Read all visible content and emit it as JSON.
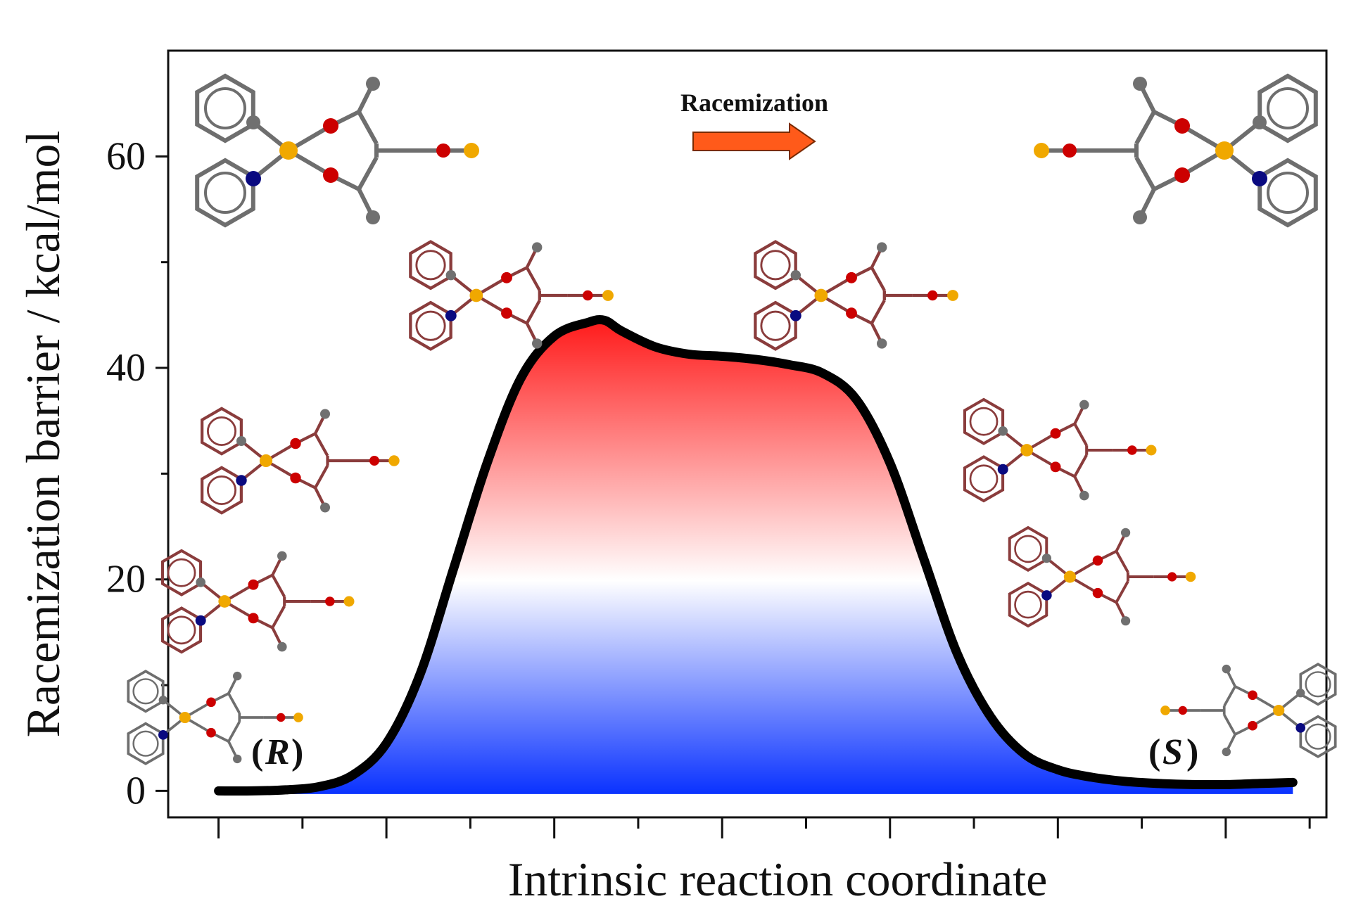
{
  "chart_data": {
    "type": "area",
    "title": "",
    "xlabel": "Intrinsic reaction coordinate",
    "ylabel": "Racemization barrier / kcal/mol",
    "ylim": [
      -2.5,
      70
    ],
    "xlim": [
      -1.5,
      33
    ],
    "y_ticks": [
      0,
      20,
      40,
      60
    ],
    "y_tick_labels": [
      "0",
      "20",
      "40",
      "60"
    ],
    "x_tick_labels_shown": false,
    "grid": false,
    "legend": "none",
    "fill_gradient": {
      "top": "#ff1a1a",
      "middle": "#ffffff",
      "bottom": "#0a32ff"
    },
    "line_color": "#000000",
    "series": [
      {
        "x": [
          0,
          1,
          2,
          3,
          4,
          5,
          6,
          7,
          8,
          9,
          10,
          11,
          11.5,
          12,
          13,
          14,
          15,
          16,
          17,
          18,
          19,
          20,
          21,
          22,
          23,
          24,
          25,
          26,
          27,
          28,
          29,
          30,
          31,
          32
        ],
        "values": [
          0,
          0,
          0.1,
          0.4,
          1.5,
          4.5,
          11,
          21,
          31,
          39,
          43,
          44.3,
          44.5,
          43.5,
          42,
          41.3,
          41.1,
          40.8,
          40.3,
          39.5,
          37,
          31,
          22,
          13,
          7,
          3.5,
          2,
          1.3,
          0.9,
          0.7,
          0.6,
          0.6,
          0.7,
          0.8
        ]
      }
    ],
    "annotations": [
      {
        "text": "Racemization",
        "kind": "arrow-label"
      },
      {
        "text": "R",
        "kind": "enantiomer-label-left"
      },
      {
        "text": "S",
        "kind": "enantiomer-label-right"
      }
    ]
  },
  "colors": {
    "copper": "#f0a800",
    "oxygen": "#cc0000",
    "nitrogen": "#0a0a80",
    "carbon": "#707070",
    "bond_grey": "#6e6e6e",
    "bond_maroon": "#8a3c3c",
    "arrow": "#ff5a1a"
  }
}
